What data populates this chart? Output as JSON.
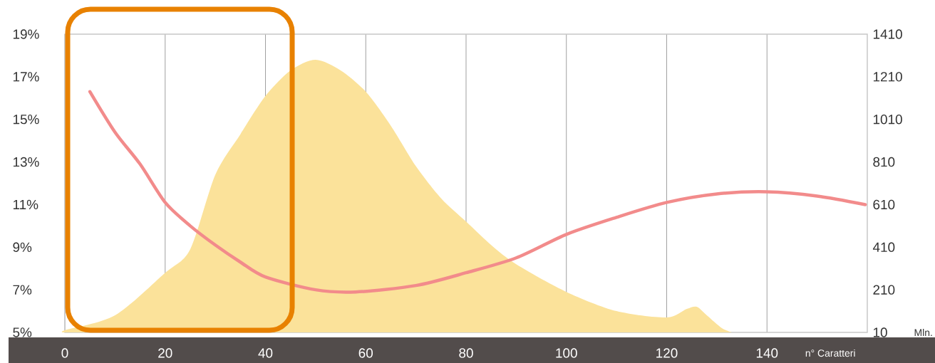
{
  "chart_data": {
    "type": "line",
    "xlabel": "n° Caratteri",
    "y2label": "Mln.",
    "xlim": [
      0,
      160
    ],
    "xticks": [
      0,
      20,
      40,
      60,
      80,
      100,
      120,
      140
    ],
    "ylim": [
      5,
      19
    ],
    "yticks": [
      {
        "value": 5,
        "label": "5%"
      },
      {
        "value": 7,
        "label": "7%"
      },
      {
        "value": 9,
        "label": "9%"
      },
      {
        "value": 11,
        "label": "11%"
      },
      {
        "value": 13,
        "label": "13%"
      },
      {
        "value": 15,
        "label": "15%"
      },
      {
        "value": 17,
        "label": "17%"
      },
      {
        "value": 19,
        "label": "19%"
      }
    ],
    "y2lim": [
      10,
      1410
    ],
    "y2ticks": [
      10,
      210,
      410,
      610,
      810,
      1010,
      1210,
      1410
    ],
    "grid": "x",
    "series": [
      {
        "type": "area",
        "axis": "y2",
        "color": "#fbe29a",
        "x": [
          0,
          10,
          20,
          25,
          30,
          35,
          40,
          45,
          50,
          55,
          60,
          65,
          70,
          75,
          80,
          85,
          90,
          100,
          110,
          120,
          124,
          126,
          128,
          131,
          133
        ],
        "values": [
          20,
          90,
          290,
          400,
          750,
          940,
          1120,
          1240,
          1290,
          1240,
          1140,
          980,
          790,
          640,
          530,
          420,
          330,
          200,
          110,
          80,
          120,
          130,
          90,
          30,
          10
        ]
      },
      {
        "color": "#f28b8b",
        "x": [
          5,
          10,
          15,
          20,
          25,
          30,
          35,
          40,
          50,
          58,
          70,
          80,
          90,
          100,
          110,
          120,
          130,
          140,
          150,
          159.6
        ],
        "values": [
          16.3,
          14.4,
          12.9,
          11.1,
          10.0,
          9.1,
          8.3,
          7.6,
          7.0,
          6.9,
          7.2,
          7.8,
          8.5,
          9.6,
          10.4,
          11.1,
          11.5,
          11.6,
          11.4,
          11.0
        ]
      }
    ]
  }
}
